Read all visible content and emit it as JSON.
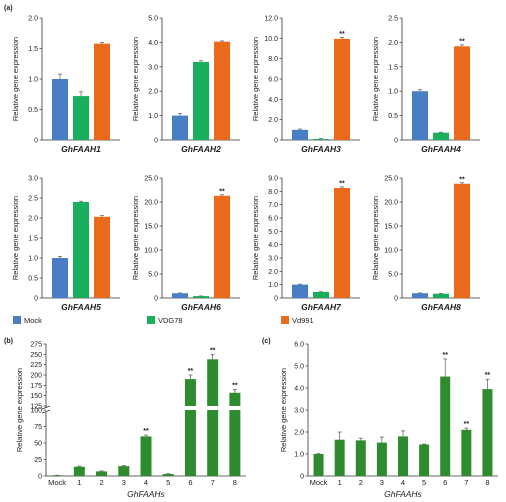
{
  "colors": {
    "mock": "#4a7ec4",
    "vdg78": "#1aaf5d",
    "vd991": "#ec6a1c",
    "green_bar": "#2e8b2e",
    "axis": "#333333",
    "error": "#555555"
  },
  "panels": {
    "a": {
      "label": "(a)",
      "legend": [
        {
          "name": "Mock",
          "color": "#4a7ec4"
        },
        {
          "name": "VDG78",
          "color": "#1aaf5d"
        },
        {
          "name": "Vd991",
          "color": "#ec6a1c"
        }
      ]
    },
    "b": {
      "label": "(b)"
    },
    "c": {
      "label": "(c)"
    }
  },
  "chart_data": [
    {
      "id": "a1",
      "type": "bar",
      "title": "GhFAAH1",
      "ylabel": "Relative gene expression",
      "categories": [
        "Mock",
        "VDG78",
        "Vd991"
      ],
      "values": [
        1.0,
        0.72,
        1.58
      ],
      "errors": [
        0.08,
        0.07,
        0.02
      ],
      "ylim": [
        0,
        2.0
      ],
      "yticks": [
        "0",
        "0.5",
        "1.0",
        "1.5",
        "2.0"
      ],
      "significance": [
        "",
        "",
        ""
      ]
    },
    {
      "id": "a2",
      "type": "bar",
      "title": "GhFAAH2",
      "ylabel": "Relative gene expression",
      "categories": [
        "Mock",
        "VDG78",
        "Vd991"
      ],
      "values": [
        1.0,
        3.2,
        4.03
      ],
      "errors": [
        0.08,
        0.05,
        0.03
      ],
      "ylim": [
        0,
        5.0
      ],
      "yticks": [
        "0",
        "1.0",
        "2.0",
        "3.0",
        "4.0",
        "5.0"
      ],
      "significance": [
        "",
        "",
        ""
      ]
    },
    {
      "id": "a3",
      "type": "bar",
      "title": "GhFAAH3",
      "ylabel": "Relative gene expression",
      "categories": [
        "Mock",
        "VDG78",
        "Vd991"
      ],
      "values": [
        1.0,
        0.1,
        9.95
      ],
      "errors": [
        0.08,
        0.03,
        0.15
      ],
      "ylim": [
        0,
        12.0
      ],
      "yticks": [
        "0",
        "2.0",
        "4.0",
        "6.0",
        "8.0",
        "10.0",
        "12.0"
      ],
      "significance": [
        "",
        "",
        "**"
      ]
    },
    {
      "id": "a4",
      "type": "bar",
      "title": "GhFAAH4",
      "ylabel": "Relative gene expression",
      "categories": [
        "Mock",
        "VDG78",
        "Vd991"
      ],
      "values": [
        1.0,
        0.15,
        1.92
      ],
      "errors": [
        0.03,
        0.01,
        0.03
      ],
      "ylim": [
        0,
        2.5
      ],
      "yticks": [
        "0",
        "0.5",
        "1.0",
        "1.5",
        "2.0",
        "2.5"
      ],
      "significance": [
        "",
        "",
        "**"
      ]
    },
    {
      "id": "a5",
      "type": "bar",
      "title": "GhFAAH5",
      "ylabel": "Relative gene expression",
      "categories": [
        "Mock",
        "VDG78",
        "Vd991"
      ],
      "values": [
        1.0,
        2.4,
        2.03
      ],
      "errors": [
        0.04,
        0.02,
        0.03
      ],
      "ylim": [
        0,
        3.0
      ],
      "yticks": [
        "0",
        "0.5",
        "1.0",
        "1.5",
        "2.0",
        "2.5",
        "3.0"
      ],
      "significance": [
        "",
        "",
        ""
      ]
    },
    {
      "id": "a6",
      "type": "bar",
      "title": "GhFAAH6",
      "ylabel": "Relative gene expression",
      "categories": [
        "Mock",
        "VDG78",
        "Vd991"
      ],
      "values": [
        1.0,
        0.4,
        21.3
      ],
      "errors": [
        0.05,
        0.03,
        0.2
      ],
      "ylim": [
        0,
        25.0
      ],
      "yticks": [
        "0",
        "5.0",
        "10.0",
        "15.0",
        "20.0",
        "25.0"
      ],
      "significance": [
        "",
        "",
        "**"
      ]
    },
    {
      "id": "a7",
      "type": "bar",
      "title": "GhFAAH7",
      "ylabel": "Relative gene expression",
      "categories": [
        "Mock",
        "VDG78",
        "Vd991"
      ],
      "values": [
        1.0,
        0.45,
        8.25
      ],
      "errors": [
        0.04,
        0.02,
        0.08
      ],
      "ylim": [
        0,
        9.0
      ],
      "yticks": [
        "0",
        "1.0",
        "2.0",
        "3.0",
        "4.0",
        "5.0",
        "6.0",
        "7.0",
        "8.0",
        "9.0"
      ],
      "significance": [
        "",
        "",
        "**"
      ]
    },
    {
      "id": "a8",
      "type": "bar",
      "title": "GhFAAH8",
      "ylabel": "Relative gene expression",
      "categories": [
        "Mock",
        "VDG78",
        "Vd991"
      ],
      "values": [
        1.0,
        0.9,
        23.8
      ],
      "errors": [
        0.06,
        0.05,
        0.2
      ],
      "ylim": [
        0,
        25.0
      ],
      "yticks": [
        "0",
        "5.0",
        "10.0",
        "15.0",
        "20.0",
        "25.0"
      ],
      "significance": [
        "",
        "",
        "**"
      ]
    },
    {
      "id": "b",
      "type": "bar",
      "xlabel": "GhFAAHs",
      "ylabel": "Relative gene expression",
      "categories": [
        "Mock",
        "1",
        "2",
        "3",
        "4",
        "5",
        "6",
        "7",
        "8"
      ],
      "values": [
        1.0,
        14.0,
        7.0,
        15.0,
        60.0,
        3.0,
        190.0,
        238.0,
        157.0
      ],
      "errors": [
        0.2,
        1.0,
        0.7,
        1.0,
        2.0,
        0.4,
        10.0,
        12.0,
        8.0
      ],
      "significance": [
        "",
        "",
        "",
        "",
        "**",
        "",
        "**",
        "**",
        "**"
      ],
      "axis_break": [
        100,
        125
      ],
      "yticks": [
        "0",
        "25",
        "50",
        "75",
        "100",
        "125",
        "150",
        "175",
        "200",
        "225",
        "250",
        "275"
      ]
    },
    {
      "id": "c",
      "type": "bar",
      "xlabel": "GhFAAHs",
      "ylabel": "Relative gene expression",
      "categories": [
        "Mock",
        "1",
        "2",
        "3",
        "4",
        "5",
        "6",
        "7",
        "8"
      ],
      "values": [
        1.0,
        1.65,
        1.62,
        1.52,
        1.8,
        1.43,
        4.52,
        2.1,
        3.95
      ],
      "errors": [
        0.02,
        0.35,
        0.1,
        0.25,
        0.25,
        0.02,
        0.8,
        0.08,
        0.45
      ],
      "significance": [
        "",
        "",
        "",
        "",
        "",
        "",
        "**",
        "**",
        "**"
      ],
      "ylim": [
        0,
        6.0
      ],
      "yticks": [
        "0",
        "1.0",
        "2.0",
        "3.0",
        "4.0",
        "5.0",
        "6.0"
      ]
    }
  ]
}
